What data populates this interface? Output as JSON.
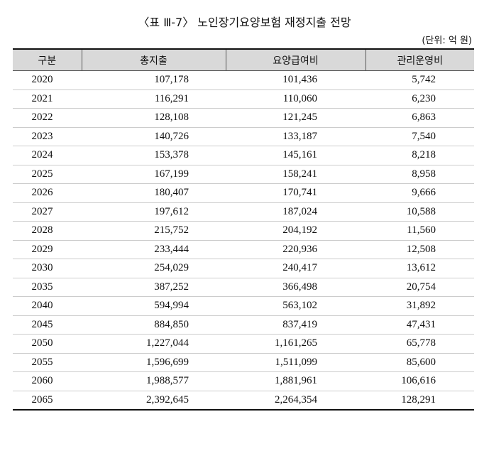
{
  "title": "〈표 Ⅲ-7〉 노인장기요양보험 재정지출 전망",
  "unit": "(단위: 억 원)",
  "table": {
    "header": [
      "구분",
      "총지출",
      "요양급여비",
      "관리운영비"
    ],
    "rows": [
      [
        "2020",
        "107,178",
        "101,436",
        "5,742"
      ],
      [
        "2021",
        "116,291",
        "110,060",
        "6,230"
      ],
      [
        "2022",
        "128,108",
        "121,245",
        "6,863"
      ],
      [
        "2023",
        "140,726",
        "133,187",
        "7,540"
      ],
      [
        "2024",
        "153,378",
        "145,161",
        "8,218"
      ],
      [
        "2025",
        "167,199",
        "158,241",
        "8,958"
      ],
      [
        "2026",
        "180,407",
        "170,741",
        "9,666"
      ],
      [
        "2027",
        "197,612",
        "187,024",
        "10,588"
      ],
      [
        "2028",
        "215,752",
        "204,192",
        "11,560"
      ],
      [
        "2029",
        "233,444",
        "220,936",
        "12,508"
      ],
      [
        "2030",
        "254,029",
        "240,417",
        "13,612"
      ],
      [
        "2035",
        "387,252",
        "366,498",
        "20,754"
      ],
      [
        "2040",
        "594,994",
        "563,102",
        "31,892"
      ],
      [
        "2045",
        "884,850",
        "837,419",
        "47,431"
      ],
      [
        "2050",
        "1,227,044",
        "1,161,265",
        "65,778"
      ],
      [
        "2055",
        "1,596,699",
        "1,511,099",
        "85,600"
      ],
      [
        "2060",
        "1,988,577",
        "1,881,961",
        "106,616"
      ],
      [
        "2065",
        "2,392,645",
        "2,264,354",
        "128,291"
      ]
    ]
  }
}
